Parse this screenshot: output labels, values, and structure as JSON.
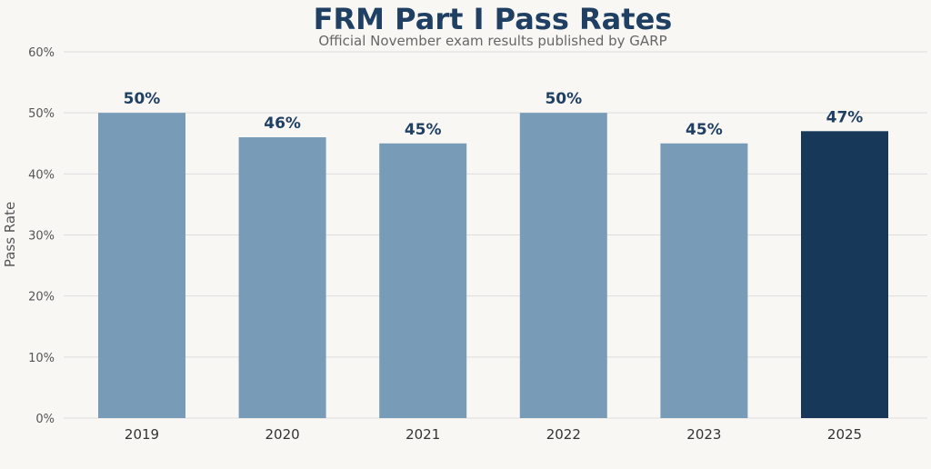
{
  "chart_data": {
    "type": "bar",
    "title": "FRM Part I Pass Rates",
    "subtitle": "Official November exam results published by GARP",
    "ylabel": "Pass Rate",
    "xlabel": "",
    "categories": [
      "2019",
      "2020",
      "2021",
      "2022",
      "2023",
      "2025"
    ],
    "values": [
      50,
      46,
      45,
      50,
      45,
      47
    ],
    "value_labels": [
      "50%",
      "46%",
      "45%",
      "50%",
      "45%",
      "47%"
    ],
    "ylim": [
      0,
      60
    ],
    "yticks": [
      0,
      10,
      20,
      30,
      40,
      50,
      60
    ],
    "ytick_labels": [
      "0%",
      "10%",
      "20%",
      "30%",
      "40%",
      "50%",
      "60%"
    ],
    "grid": true,
    "colors": {
      "bar": "#789cb7",
      "highlight": "#18385a",
      "title": "#1f3f63",
      "subtitle": "#666666",
      "grid": "#dddddd",
      "tick": "#555555",
      "background": "#f9f7f4"
    },
    "highlight_index": 5
  }
}
